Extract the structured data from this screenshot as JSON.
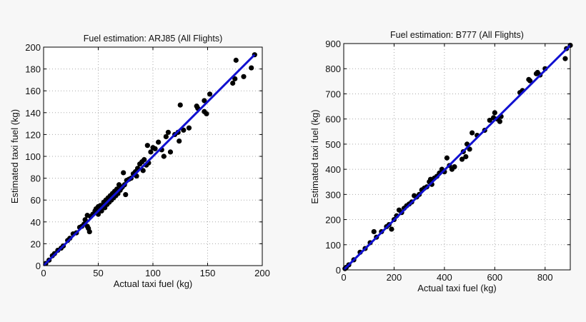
{
  "chart_data": [
    {
      "type": "scatter",
      "title": "Fuel estimation: ARJ85 (All Flights)",
      "xlabel": "Actual taxi fuel (kg)",
      "ylabel": "Estimated taxi fuel (kg)",
      "xlim": [
        0,
        200
      ],
      "ylim": [
        0,
        200
      ],
      "xticks": [
        0,
        50,
        100,
        150,
        200
      ],
      "yticks": [
        0,
        20,
        40,
        60,
        80,
        100,
        120,
        140,
        160,
        180,
        200
      ],
      "grid": true,
      "marker_color": "#000000",
      "fit_line": {
        "color": "#1010d0",
        "x": [
          0,
          193
        ],
        "y": [
          0,
          193
        ]
      },
      "points": [
        [
          2,
          2
        ],
        [
          5,
          5
        ],
        [
          8,
          9
        ],
        [
          10,
          11
        ],
        [
          13,
          14
        ],
        [
          16,
          16
        ],
        [
          18,
          18
        ],
        [
          22,
          23
        ],
        [
          24,
          25
        ],
        [
          27,
          29
        ],
        [
          30,
          30
        ],
        [
          33,
          35
        ],
        [
          35,
          36
        ],
        [
          37,
          38
        ],
        [
          38,
          42
        ],
        [
          40,
          36
        ],
        [
          41,
          34
        ],
        [
          42,
          31
        ],
        [
          40,
          46
        ],
        [
          43,
          45
        ],
        [
          45,
          47
        ],
        [
          47,
          50
        ],
        [
          48,
          52
        ],
        [
          50,
          54
        ],
        [
          50,
          47
        ],
        [
          52,
          55
        ],
        [
          53,
          50
        ],
        [
          55,
          58
        ],
        [
          56,
          53
        ],
        [
          57,
          60
        ],
        [
          58,
          56
        ],
        [
          59,
          62
        ],
        [
          60,
          58
        ],
        [
          61,
          64
        ],
        [
          62,
          60
        ],
        [
          63,
          66
        ],
        [
          64,
          62
        ],
        [
          65,
          68
        ],
        [
          66,
          64
        ],
        [
          67,
          70
        ],
        [
          68,
          66
        ],
        [
          69,
          74
        ],
        [
          70,
          69
        ],
        [
          71,
          71
        ],
        [
          72,
          72
        ],
        [
          73,
          85
        ],
        [
          74,
          74
        ],
        [
          75,
          65
        ],
        [
          76,
          78
        ],
        [
          78,
          79
        ],
        [
          80,
          80
        ],
        [
          82,
          84
        ],
        [
          84,
          86
        ],
        [
          85,
          82
        ],
        [
          86,
          89
        ],
        [
          88,
          93
        ],
        [
          90,
          95
        ],
        [
          91,
          87
        ],
        [
          92,
          97
        ],
        [
          94,
          92
        ],
        [
          95,
          110
        ],
        [
          96,
          94
        ],
        [
          98,
          104
        ],
        [
          100,
          108
        ],
        [
          102,
          107
        ],
        [
          105,
          113
        ],
        [
          108,
          106
        ],
        [
          110,
          100
        ],
        [
          112,
          118
        ],
        [
          114,
          122
        ],
        [
          116,
          104
        ],
        [
          120,
          120
        ],
        [
          123,
          122
        ],
        [
          124,
          114
        ],
        [
          125,
          147
        ],
        [
          128,
          124
        ],
        [
          133,
          126
        ],
        [
          140,
          146
        ],
        [
          141,
          144
        ],
        [
          147,
          151
        ],
        [
          147,
          141
        ],
        [
          149,
          139
        ],
        [
          152,
          157
        ],
        [
          173,
          167
        ],
        [
          175,
          171
        ],
        [
          176,
          188
        ],
        [
          183,
          173
        ],
        [
          190,
          181
        ],
        [
          193,
          193
        ]
      ]
    },
    {
      "type": "scatter",
      "title": "Fuel estimation: B777 (All Flights)",
      "xlabel": "Actual taxi fuel (kg)",
      "ylabel": "Estimated taxi fuel (kg)",
      "xlim": [
        0,
        900
      ],
      "ylim": [
        0,
        900
      ],
      "xticks": [
        0,
        200,
        400,
        600,
        800
      ],
      "yticks": [
        0,
        100,
        200,
        300,
        400,
        500,
        600,
        700,
        800,
        900
      ],
      "grid": true,
      "marker_color": "#000000",
      "fit_line": {
        "color": "#1010d0",
        "x": [
          0,
          900
        ],
        "y": [
          0,
          893
        ]
      },
      "points": [
        [
          5,
          5
        ],
        [
          10,
          10
        ],
        [
          20,
          20
        ],
        [
          40,
          40
        ],
        [
          65,
          70
        ],
        [
          85,
          85
        ],
        [
          105,
          108
        ],
        [
          120,
          152
        ],
        [
          130,
          130
        ],
        [
          150,
          152
        ],
        [
          170,
          172
        ],
        [
          180,
          180
        ],
        [
          190,
          162
        ],
        [
          200,
          200
        ],
        [
          210,
          215
        ],
        [
          220,
          238
        ],
        [
          230,
          228
        ],
        [
          240,
          245
        ],
        [
          250,
          255
        ],
        [
          260,
          262
        ],
        [
          270,
          270
        ],
        [
          280,
          295
        ],
        [
          290,
          290
        ],
        [
          300,
          300
        ],
        [
          310,
          318
        ],
        [
          320,
          325
        ],
        [
          330,
          330
        ],
        [
          340,
          350
        ],
        [
          345,
          360
        ],
        [
          350,
          340
        ],
        [
          360,
          365
        ],
        [
          370,
          372
        ],
        [
          380,
          385
        ],
        [
          390,
          400
        ],
        [
          400,
          390
        ],
        [
          410,
          445
        ],
        [
          420,
          415
        ],
        [
          430,
          400
        ],
        [
          440,
          410
        ],
        [
          470,
          440
        ],
        [
          475,
          470
        ],
        [
          485,
          450
        ],
        [
          490,
          500
        ],
        [
          500,
          480
        ],
        [
          510,
          545
        ],
        [
          530,
          535
        ],
        [
          560,
          555
        ],
        [
          580,
          595
        ],
        [
          595,
          605
        ],
        [
          600,
          625
        ],
        [
          610,
          600
        ],
        [
          620,
          590
        ],
        [
          625,
          610
        ],
        [
          700,
          705
        ],
        [
          710,
          713
        ],
        [
          735,
          757
        ],
        [
          740,
          752
        ],
        [
          765,
          780
        ],
        [
          770,
          785
        ],
        [
          780,
          775
        ],
        [
          800,
          800
        ],
        [
          880,
          840
        ],
        [
          885,
          880
        ],
        [
          900,
          893
        ]
      ]
    }
  ]
}
